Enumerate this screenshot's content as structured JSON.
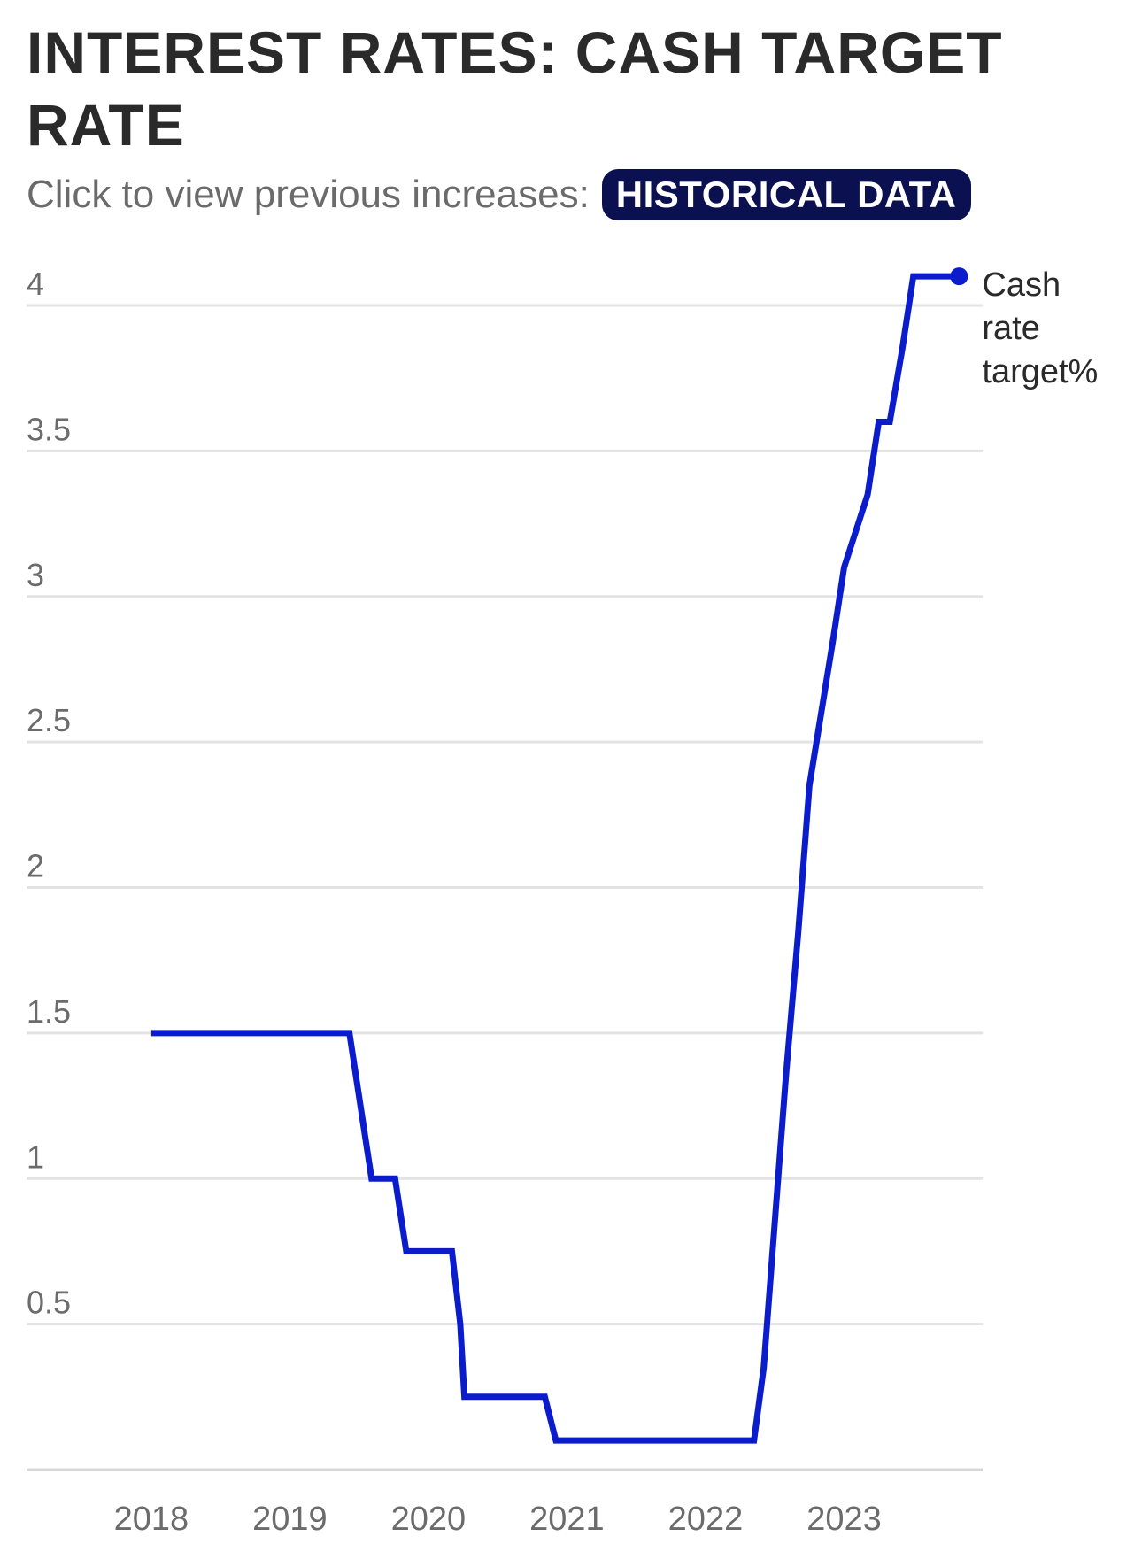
{
  "title": "INTEREST RATES: CASH TARGET RATE",
  "subtitle": "Click to view previous increases:",
  "button_label": "HISTORICAL DATA",
  "colors": {
    "line": "#0a1ccc",
    "grid": "#e3e3e3",
    "axis_text": "#6b6b6b",
    "title": "#2a2a2a",
    "button_bg": "#0a1050"
  },
  "chart_data": {
    "type": "line",
    "title": "INTEREST RATES: CASH TARGET RATE",
    "xlabel": "",
    "ylabel": "",
    "ylim": [
      0,
      4
    ],
    "xlim": [
      2017.1,
      2024.0
    ],
    "yticks": [
      "0.5",
      "1",
      "1.5",
      "2",
      "2.5",
      "3",
      "3.5",
      "4"
    ],
    "xticks": [
      "2018",
      "2019",
      "2020",
      "2021",
      "2022",
      "2023"
    ],
    "grid": true,
    "series": [
      {
        "name": "Cash rate target%",
        "points": [
          [
            2018.0,
            1.5
          ],
          [
            2019.43,
            1.5
          ],
          [
            2019.59,
            1.0
          ],
          [
            2019.76,
            1.0
          ],
          [
            2019.84,
            0.75
          ],
          [
            2020.17,
            0.75
          ],
          [
            2020.23,
            0.5
          ],
          [
            2020.26,
            0.25
          ],
          [
            2020.84,
            0.25
          ],
          [
            2020.92,
            0.1
          ],
          [
            2022.35,
            0.1
          ],
          [
            2022.42,
            0.35
          ],
          [
            2022.5,
            0.85
          ],
          [
            2022.58,
            1.35
          ],
          [
            2022.67,
            1.85
          ],
          [
            2022.75,
            2.35
          ],
          [
            2022.92,
            2.85
          ],
          [
            2023.0,
            3.1
          ],
          [
            2023.17,
            3.35
          ],
          [
            2023.25,
            3.6
          ],
          [
            2023.33,
            3.6
          ],
          [
            2023.42,
            3.85
          ],
          [
            2023.5,
            4.1
          ],
          [
            2023.83,
            4.1
          ]
        ]
      }
    ]
  }
}
